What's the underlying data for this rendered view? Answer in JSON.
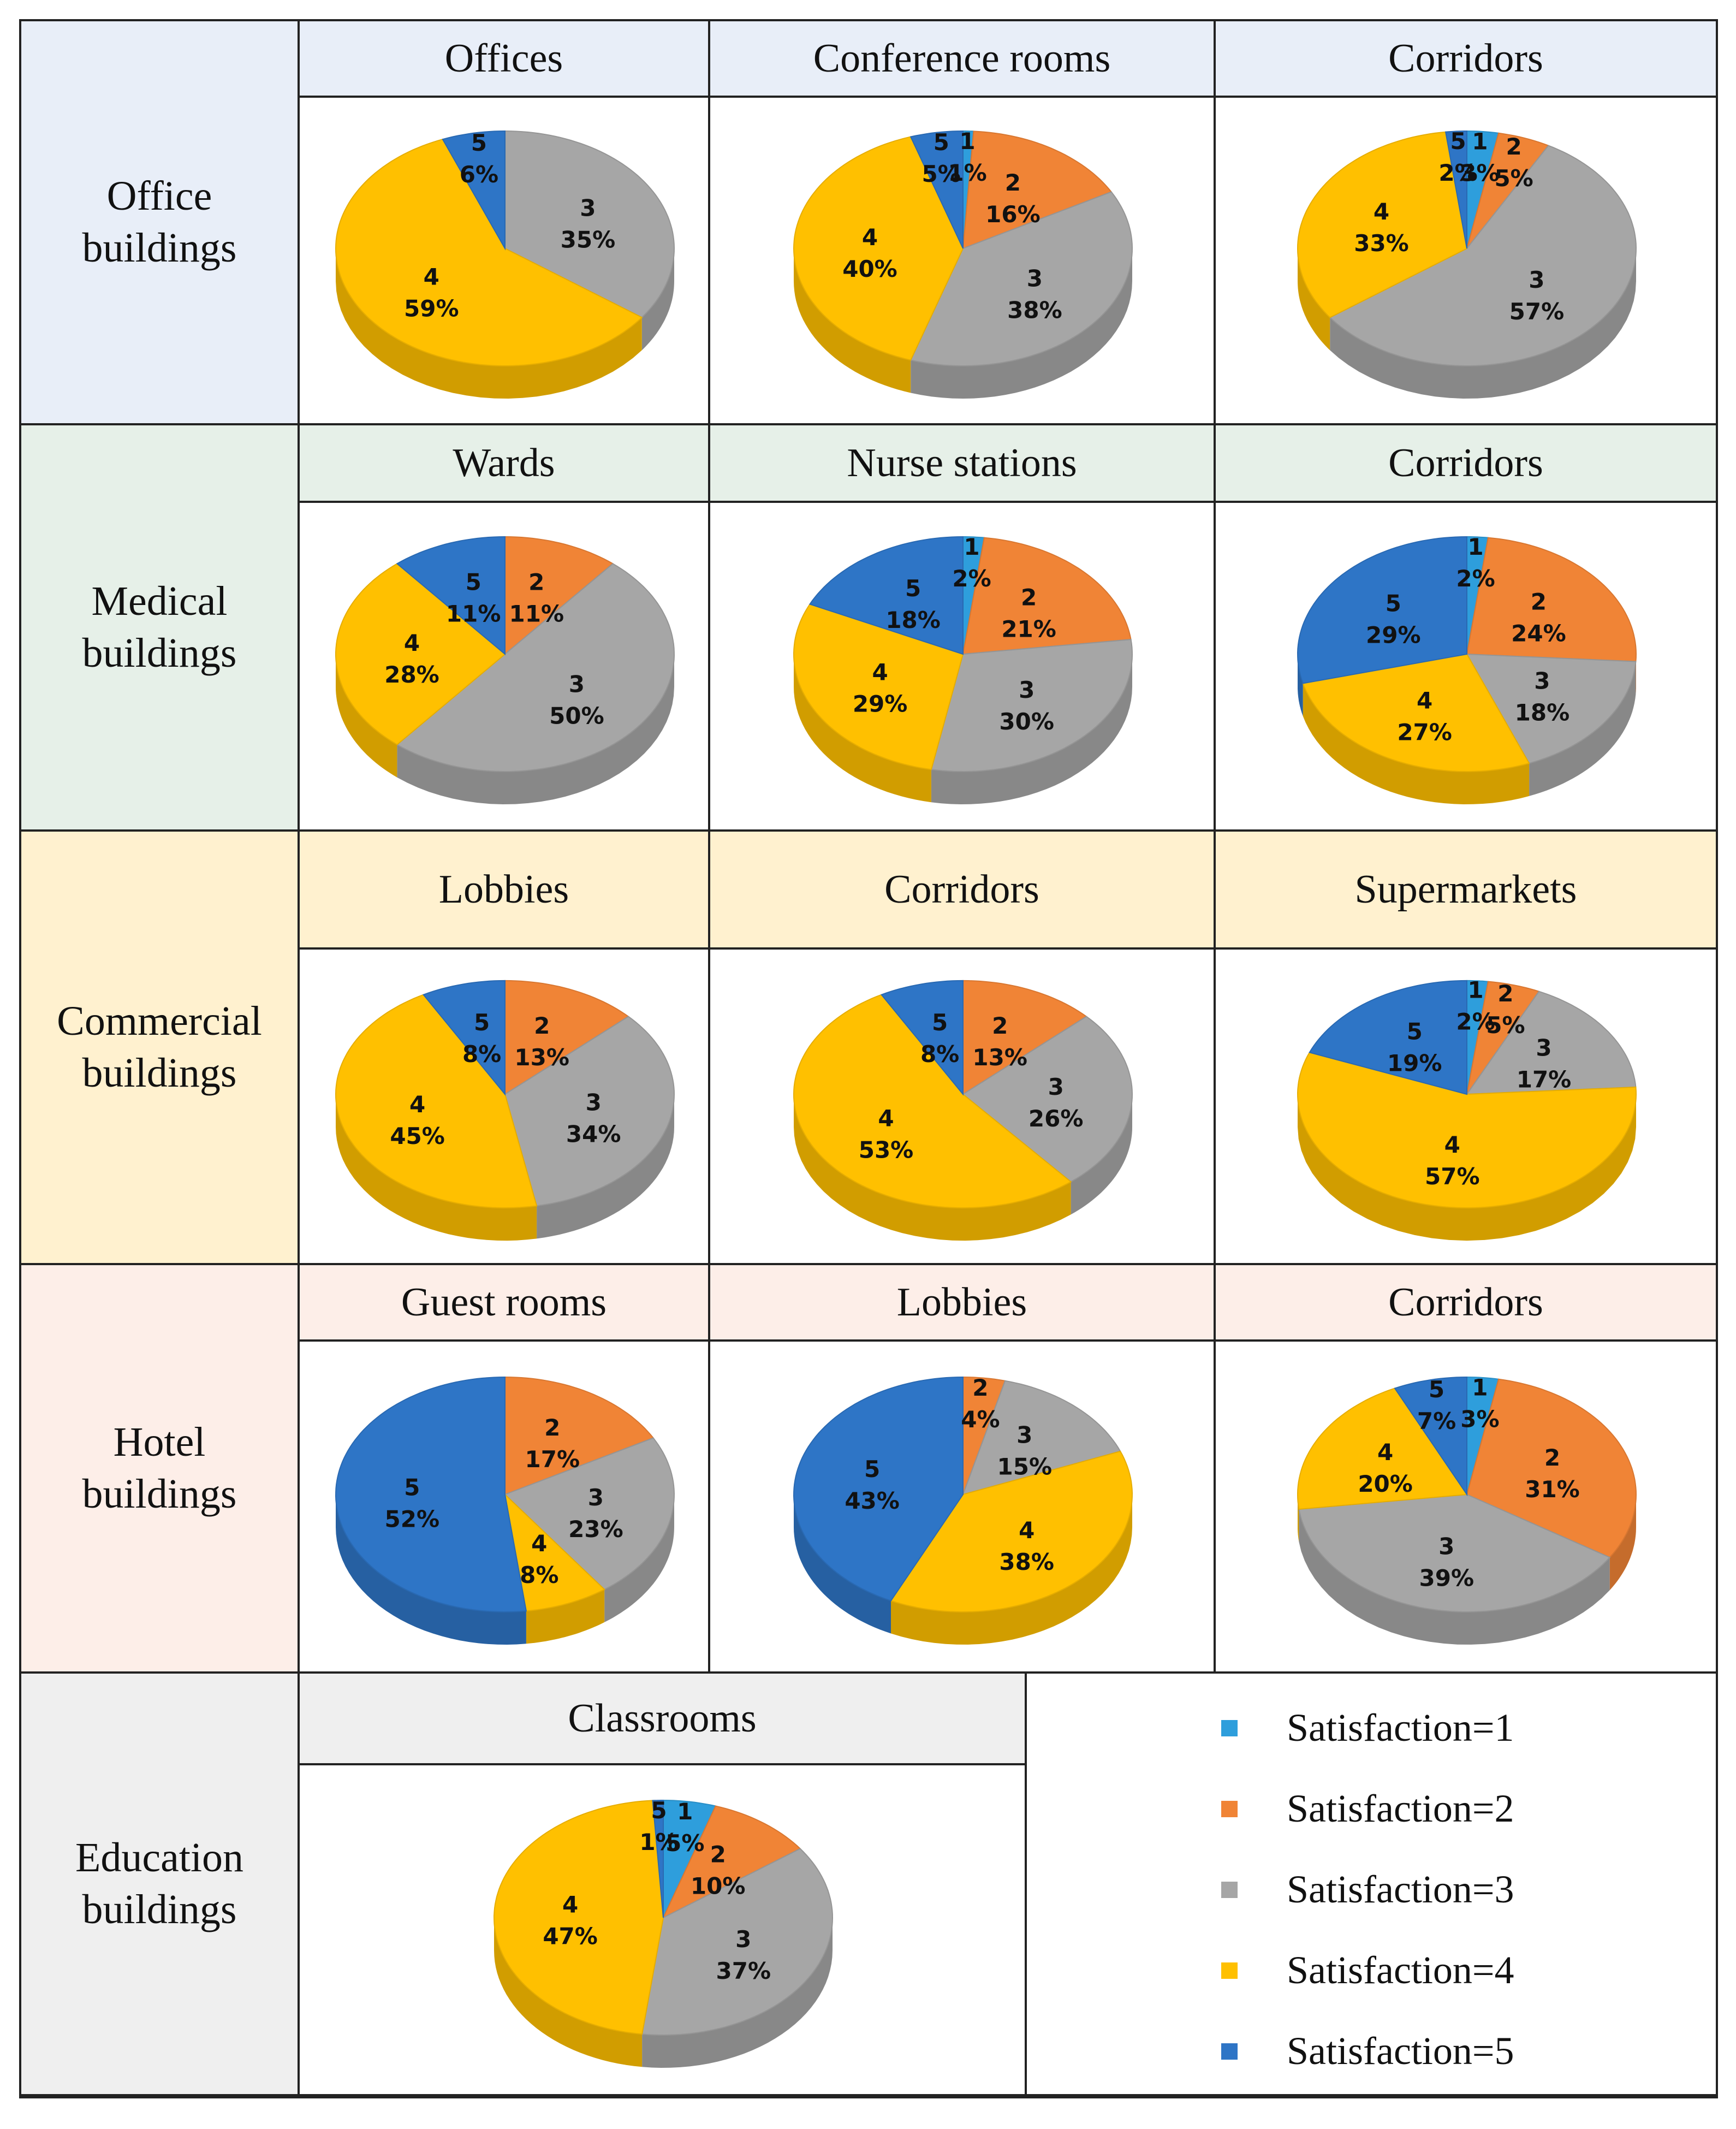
{
  "colors": {
    "s1": "#2E9EDC",
    "s2": "#F08436",
    "s3": "#A6A6A6",
    "s4": "#FFC000",
    "s5": "#2E75C6",
    "office_bg": "#E8EEF8",
    "medical_bg": "#E6F0E8",
    "commercial_bg": "#FFF1CF",
    "hotel_bg": "#FDEEE8",
    "education_bg": "#EFEFEF"
  },
  "categories": [
    {
      "label": "Office\nbuildings"
    },
    {
      "label": "Medical\nbuildings"
    },
    {
      "label": "Commercial\nbuildings"
    },
    {
      "label": "Hotel\nbuildings"
    },
    {
      "label": "Education\nbuildings"
    }
  ],
  "legend": [
    {
      "label": "Satisfaction=1",
      "color": "#2E9EDC"
    },
    {
      "label": "Satisfaction=2",
      "color": "#F08436"
    },
    {
      "label": "Satisfaction=3",
      "color": "#A6A6A6"
    },
    {
      "label": "Satisfaction=4",
      "color": "#FFC000"
    },
    {
      "label": "Satisfaction=5",
      "color": "#2E75C6"
    }
  ],
  "chart_data": [
    {
      "type": "pie",
      "title": "Offices",
      "group": "Office buildings",
      "slices": [
        {
          "level": 3,
          "label": "35%",
          "value": 35
        },
        {
          "level": 4,
          "label": "59%",
          "value": 59
        },
        {
          "level": 5,
          "label": "6%",
          "value": 6
        }
      ]
    },
    {
      "type": "pie",
      "title": "Conference rooms",
      "group": "Office buildings",
      "slices": [
        {
          "level": 1,
          "label": "1%",
          "value": 1
        },
        {
          "level": 2,
          "label": "16%",
          "value": 16
        },
        {
          "level": 3,
          "label": "38%",
          "value": 38
        },
        {
          "level": 4,
          "label": "40%",
          "value": 40
        },
        {
          "level": 5,
          "label": "5%",
          "value": 5
        }
      ]
    },
    {
      "type": "pie",
      "title": "Corridors",
      "group": "Office buildings",
      "slices": [
        {
          "level": 1,
          "label": "3%",
          "value": 3
        },
        {
          "level": 2,
          "label": "5%",
          "value": 5
        },
        {
          "level": 3,
          "label": "57%",
          "value": 57
        },
        {
          "level": 4,
          "label": "33%",
          "value": 33
        },
        {
          "level": 5,
          "label": "2%",
          "value": 2
        }
      ]
    },
    {
      "type": "pie",
      "title": "Wards",
      "group": "Medical buildings",
      "slices": [
        {
          "level": 2,
          "label": "11%",
          "value": 11
        },
        {
          "level": 3,
          "label": "50%",
          "value": 50
        },
        {
          "level": 4,
          "label": "28%",
          "value": 28
        },
        {
          "level": 5,
          "label": "11%",
          "value": 11
        }
      ]
    },
    {
      "type": "pie",
      "title": "Nurse stations",
      "group": "Medical buildings",
      "slices": [
        {
          "level": 1,
          "label": "2%",
          "value": 2
        },
        {
          "level": 2,
          "label": "21%",
          "value": 21
        },
        {
          "level": 3,
          "label": "30%",
          "value": 30
        },
        {
          "level": 4,
          "label": "29%",
          "value": 29
        },
        {
          "level": 5,
          "label": "18%",
          "value": 18
        }
      ]
    },
    {
      "type": "pie",
      "title": "Corridors",
      "group": "Medical buildings",
      "slices": [
        {
          "level": 1,
          "label": "2%",
          "value": 2
        },
        {
          "level": 2,
          "label": "24%",
          "value": 24
        },
        {
          "level": 3,
          "label": "18%",
          "value": 18
        },
        {
          "level": 4,
          "label": "27%",
          "value": 27
        },
        {
          "level": 5,
          "label": "29%",
          "value": 29
        }
      ]
    },
    {
      "type": "pie",
      "title": "Lobbies",
      "group": "Commercial buildings",
      "slices": [
        {
          "level": 2,
          "label": "13%",
          "value": 13
        },
        {
          "level": 3,
          "label": "34%",
          "value": 34
        },
        {
          "level": 4,
          "label": "45%",
          "value": 45
        },
        {
          "level": 5,
          "label": "8%",
          "value": 8
        }
      ]
    },
    {
      "type": "pie",
      "title": "Corridors",
      "group": "Commercial buildings",
      "slices": [
        {
          "level": 2,
          "label": "13%",
          "value": 13
        },
        {
          "level": 3,
          "label": "26%",
          "value": 26
        },
        {
          "level": 4,
          "label": "53%",
          "value": 53
        },
        {
          "level": 5,
          "label": "8%",
          "value": 8
        }
      ]
    },
    {
      "type": "pie",
      "title": "Supermarkets",
      "group": "Commercial buildings",
      "slices": [
        {
          "level": 1,
          "label": "2%",
          "value": 2
        },
        {
          "level": 2,
          "label": "5%",
          "value": 5
        },
        {
          "level": 3,
          "label": "17%",
          "value": 17
        },
        {
          "level": 4,
          "label": "57%",
          "value": 57
        },
        {
          "level": 5,
          "label": "19%",
          "value": 19
        }
      ]
    },
    {
      "type": "pie",
      "title": "Guest rooms",
      "group": "Hotel buildings",
      "slices": [
        {
          "level": 2,
          "label": "17%",
          "value": 17
        },
        {
          "level": 3,
          "label": "23%",
          "value": 23
        },
        {
          "level": 4,
          "label": "8%",
          "value": 8
        },
        {
          "level": 5,
          "label": "52%",
          "value": 52
        }
      ]
    },
    {
      "type": "pie",
      "title": "Lobbies",
      "group": "Hotel buildings",
      "slices": [
        {
          "level": 2,
          "label": "4%",
          "value": 4
        },
        {
          "level": 3,
          "label": "15%",
          "value": 15
        },
        {
          "level": 4,
          "label": "38%",
          "value": 38
        },
        {
          "level": 5,
          "label": "43%",
          "value": 43
        }
      ]
    },
    {
      "type": "pie",
      "title": "Corridors",
      "group": "Hotel buildings",
      "slices": [
        {
          "level": 1,
          "label": "3%",
          "value": 3
        },
        {
          "level": 2,
          "label": "31%",
          "value": 31
        },
        {
          "level": 3,
          "label": "39%",
          "value": 39
        },
        {
          "level": 4,
          "label": "20%",
          "value": 20
        },
        {
          "level": 5,
          "label": "7%",
          "value": 7
        }
      ]
    },
    {
      "type": "pie",
      "title": "Classrooms",
      "group": "Education buildings",
      "slices": [
        {
          "level": 1,
          "label": "5%",
          "value": 5
        },
        {
          "level": 2,
          "label": "10%",
          "value": 10
        },
        {
          "level": 3,
          "label": "37%",
          "value": 37
        },
        {
          "level": 4,
          "label": "47%",
          "value": 47
        },
        {
          "level": 5,
          "label": "1%",
          "value": 1
        }
      ]
    }
  ]
}
